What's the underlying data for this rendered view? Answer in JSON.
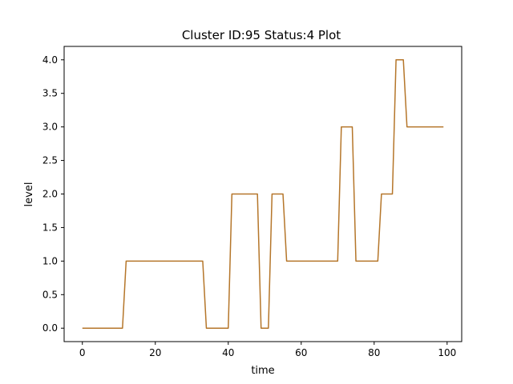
{
  "chart_data": {
    "type": "line",
    "title": "Cluster ID:95 Status:4 Plot",
    "xlabel": "time",
    "ylabel": "level",
    "xlim": [
      -5,
      104
    ],
    "ylim": [
      -0.2,
      4.2
    ],
    "xticks": [
      0,
      20,
      40,
      60,
      80,
      100
    ],
    "yticks": [
      0.0,
      0.5,
      1.0,
      1.5,
      2.0,
      2.5,
      3.0,
      3.5,
      4.0
    ],
    "xtick_labels": [
      "0",
      "20",
      "40",
      "60",
      "80",
      "100"
    ],
    "ytick_labels": [
      "0.0",
      "0.5",
      "1.0",
      "1.5",
      "2.0",
      "2.5",
      "3.0",
      "3.5",
      "4.0"
    ],
    "grid": false,
    "series": [
      {
        "color": "#b5762a",
        "x": [
          0,
          1,
          2,
          3,
          4,
          5,
          6,
          7,
          8,
          9,
          10,
          11,
          12,
          13,
          14,
          15,
          16,
          17,
          18,
          19,
          20,
          21,
          22,
          23,
          24,
          25,
          26,
          27,
          28,
          29,
          30,
          31,
          32,
          33,
          34,
          35,
          36,
          37,
          38,
          39,
          40,
          41,
          42,
          43,
          44,
          45,
          46,
          47,
          48,
          49,
          50,
          51,
          52,
          53,
          54,
          55,
          56,
          57,
          58,
          59,
          60,
          61,
          62,
          63,
          64,
          65,
          66,
          67,
          68,
          69,
          70,
          71,
          72,
          73,
          74,
          75,
          76,
          77,
          78,
          79,
          80,
          81,
          82,
          83,
          84,
          85,
          86,
          87,
          88,
          89,
          90,
          91,
          92,
          93,
          94,
          95,
          96,
          97,
          98,
          99
        ],
        "y": [
          0,
          0,
          0,
          0,
          0,
          0,
          0,
          0,
          0,
          0,
          0,
          0,
          1,
          1,
          1,
          1,
          1,
          1,
          1,
          1,
          1,
          1,
          1,
          1,
          1,
          1,
          1,
          1,
          1,
          1,
          1,
          1,
          1,
          1,
          0,
          0,
          0,
          0,
          0,
          0,
          0,
          2,
          2,
          2,
          2,
          2,
          2,
          2,
          2,
          0,
          0,
          0,
          2,
          2,
          2,
          2,
          1,
          1,
          1,
          1,
          1,
          1,
          1,
          1,
          1,
          1,
          1,
          1,
          1,
          1,
          1,
          3,
          3,
          3,
          3,
          1,
          1,
          1,
          1,
          1,
          1,
          1,
          2,
          2,
          2,
          2,
          4,
          4,
          4,
          3,
          3,
          3,
          3,
          3,
          3,
          3,
          3,
          3,
          3,
          3
        ]
      }
    ]
  }
}
